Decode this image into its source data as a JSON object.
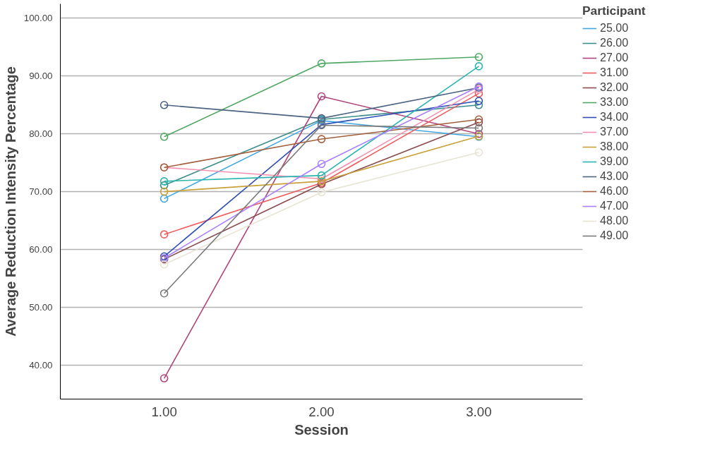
{
  "chart_data": {
    "type": "line",
    "xlabel": "Session",
    "ylabel": "Average Reduction Intensity Percentage",
    "legend_title": "Participant",
    "x": [
      1,
      2,
      3
    ],
    "xlim": [
      0.34,
      3.66
    ],
    "xticks": [
      {
        "value": 1,
        "label": "1.00"
      },
      {
        "value": 2,
        "label": "2.00"
      },
      {
        "value": 3,
        "label": "3.00"
      }
    ],
    "ylim": [
      34.1,
      102.5
    ],
    "yticks": [
      {
        "value": 40,
        "label": "40.00"
      },
      {
        "value": 50,
        "label": "50.00"
      },
      {
        "value": 60,
        "label": "60.00"
      },
      {
        "value": 70,
        "label": "70.00"
      },
      {
        "value": 80,
        "label": "80.00"
      },
      {
        "value": 90,
        "label": "90.00"
      },
      {
        "value": 100,
        "label": "100.00"
      }
    ],
    "grid": "y",
    "legend": "right",
    "marker": "circle",
    "line_style": "solid",
    "series": [
      {
        "name": "25.00",
        "color": "#41a7e0",
        "values": [
          68.8,
          82.3,
          79.5
        ]
      },
      {
        "name": "26.00",
        "color": "#3b8f8a",
        "values": [
          71.1,
          82.5,
          85.0
        ]
      },
      {
        "name": "27.00",
        "color": "#b0447a",
        "values": [
          37.7,
          86.5,
          80.0
        ]
      },
      {
        "name": "31.00",
        "color": "#f05a5a",
        "values": [
          62.6,
          71.5,
          87.0
        ]
      },
      {
        "name": "32.00",
        "color": "#8a4b4e",
        "values": [
          58.3,
          71.3,
          82.0
        ]
      },
      {
        "name": "33.00",
        "color": "#4fa862",
        "values": [
          79.5,
          92.2,
          93.3
        ]
      },
      {
        "name": "34.00",
        "color": "#2f4fb5",
        "values": [
          58.8,
          81.6,
          85.7
        ]
      },
      {
        "name": "37.00",
        "color": "#f48fb1",
        "values": [
          74.2,
          72.2,
          87.7
        ]
      },
      {
        "name": "38.00",
        "color": "#c9a13a",
        "values": [
          70.0,
          71.8,
          79.6
        ]
      },
      {
        "name": "39.00",
        "color": "#2bb5b0",
        "values": [
          71.8,
          72.8,
          91.7
        ]
      },
      {
        "name": "43.00",
        "color": "#4d6480",
        "values": [
          85.0,
          82.7,
          88.0
        ]
      },
      {
        "name": "46.00",
        "color": "#a35e3c",
        "values": [
          74.2,
          79.1,
          82.5
        ]
      },
      {
        "name": "47.00",
        "color": "#a880ff",
        "values": [
          58.5,
          74.8,
          88.2
        ]
      },
      {
        "name": "48.00",
        "color": "#e8e4d4",
        "values": [
          57.4,
          69.9,
          76.8
        ]
      },
      {
        "name": "49.00",
        "color": "#7a7a7a",
        "values": [
          52.4,
          81.5,
          81.0
        ]
      }
    ]
  }
}
